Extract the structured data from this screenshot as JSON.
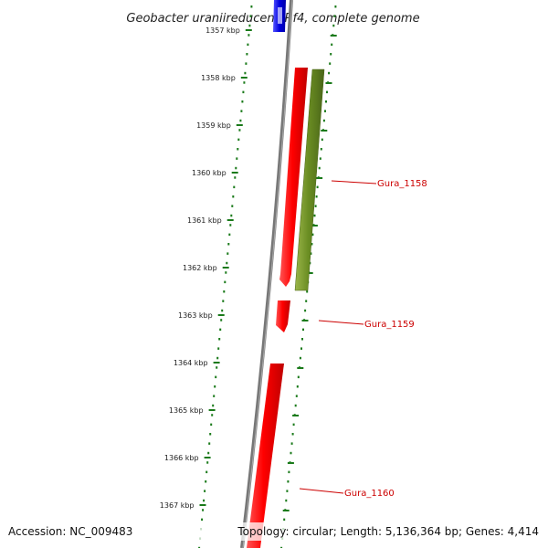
{
  "title": "Geobacter uraniireducens Rf4, complete genome",
  "accession_label": "Accession: NC_009483",
  "topology_label": "Topology: circular; Length: 5,136,364 bp; Genes: 4,414",
  "colors": {
    "gene_red": "#ff0000",
    "gene_green": "#6b8e23",
    "gene_blue": "#0000dd",
    "ruler_green": "#1a7a1a",
    "backbone": "#777777",
    "label_red": "#cc0000"
  },
  "ruler_ticks": [
    {
      "label": "1357 kbp"
    },
    {
      "label": "1358 kbp"
    },
    {
      "label": "1359 kbp"
    },
    {
      "label": "1360 kbp"
    },
    {
      "label": "1361 kbp"
    },
    {
      "label": "1362 kbp"
    },
    {
      "label": "1363 kbp"
    },
    {
      "label": "1364 kbp"
    },
    {
      "label": "1365 kbp"
    },
    {
      "label": "1366 kbp"
    },
    {
      "label": "1367 kbp"
    }
  ],
  "genes": [
    {
      "label": "Gura_1158",
      "strand": "forward",
      "color": "green"
    },
    {
      "label": "Gura_1159",
      "strand": "reverse",
      "color": "red"
    },
    {
      "label": "Gura_1160",
      "strand": "reverse",
      "color": "red"
    }
  ]
}
